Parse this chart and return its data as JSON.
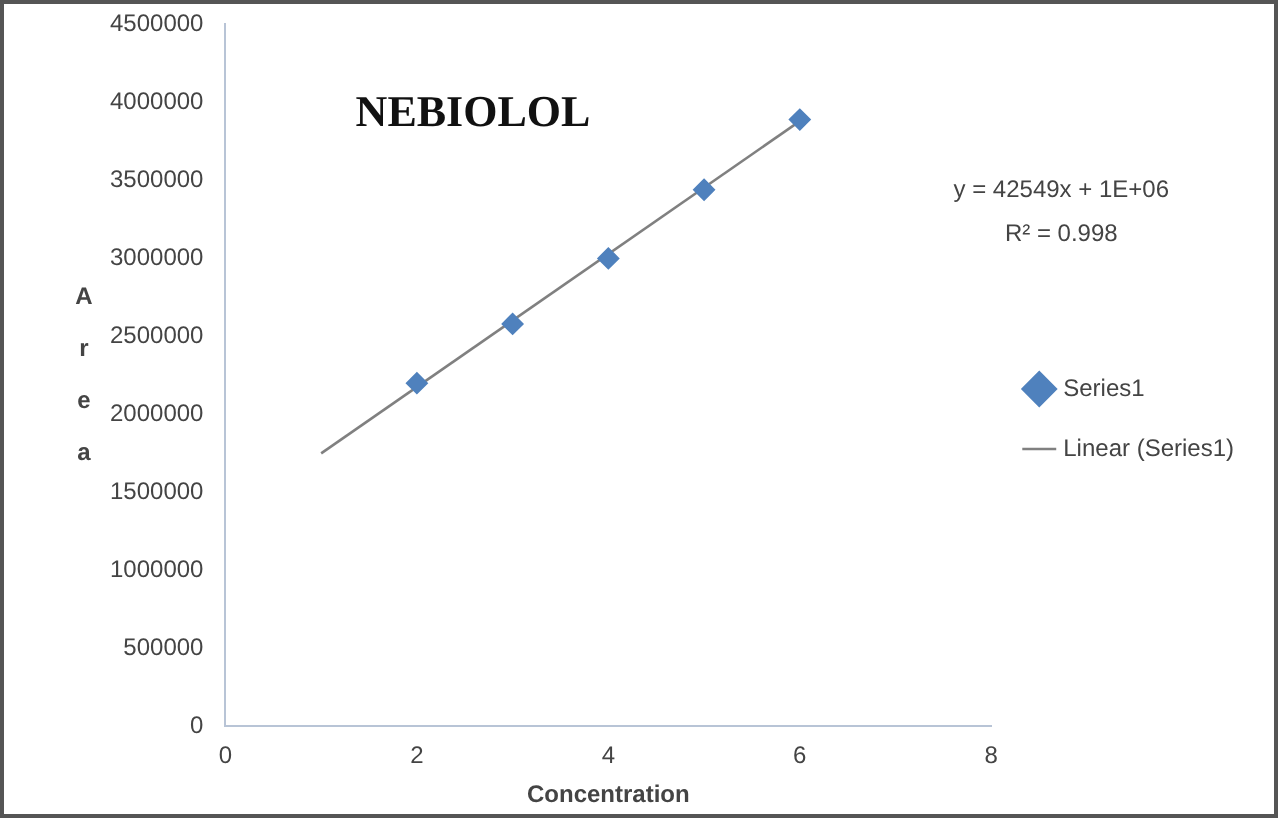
{
  "chart_data": {
    "type": "scatter",
    "title": "NEBIOLOL",
    "xlabel": "Concentration",
    "ylabel": "Area",
    "x": [
      2,
      3,
      4,
      5,
      6
    ],
    "series": [
      {
        "name": "Series1",
        "color": "#4f81bd",
        "values": [
          2200000,
          2580000,
          3000000,
          3440000,
          3890000
        ],
        "marker": "diamond"
      },
      {
        "name": "Linear (Series1)",
        "type": "line",
        "color": "#808080",
        "x": [
          1,
          6
        ],
        "values": [
          1750000,
          3880000
        ],
        "marker": "none"
      }
    ],
    "xlim": [
      0,
      8
    ],
    "xticks": [
      0,
      2,
      4,
      6,
      8
    ],
    "ylim": [
      0,
      4500000
    ],
    "yticks": [
      0,
      500000,
      1000000,
      1500000,
      2000000,
      2500000,
      3000000,
      3500000,
      4000000,
      4500000
    ],
    "annotations": [
      "y = 42549x + 1E+06",
      "R² = 0.998"
    ],
    "legend": "right",
    "grid": false
  }
}
